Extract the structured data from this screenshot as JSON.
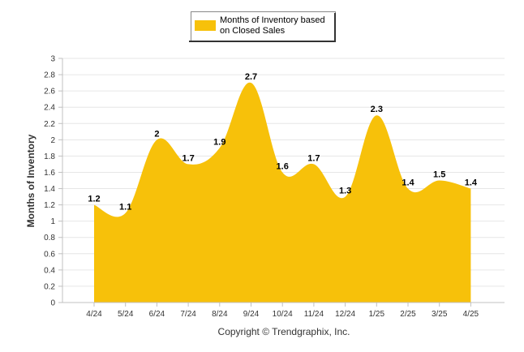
{
  "chart_data": {
    "type": "area",
    "categories": [
      "4/24",
      "5/24",
      "6/24",
      "7/24",
      "8/24",
      "9/24",
      "10/24",
      "11/24",
      "12/24",
      "1/25",
      "2/25",
      "3/25",
      "4/25"
    ],
    "series": [
      {
        "name": "Months of Inventory based on Closed Sales",
        "values": [
          1.2,
          1.1,
          2,
          1.7,
          1.9,
          2.7,
          1.6,
          1.7,
          1.3,
          2.3,
          1.4,
          1.5,
          1.4
        ],
        "value_labels": [
          "1.2",
          "1.1",
          "2",
          "1.7",
          "1.9",
          "2.7",
          "1.6",
          "1.7",
          "1.3",
          "2.3",
          "1.4",
          "1.5",
          "1.4"
        ],
        "color": "#F7C10A"
      }
    ],
    "ylabel": "Months of Inventory",
    "xlabel": "",
    "ylim": [
      0,
      3
    ],
    "yticks": [
      "0",
      "0.2",
      "0.4",
      "0.6",
      "0.8",
      "1",
      "1.2",
      "1.4",
      "1.6",
      "1.8",
      "2",
      "2.2",
      "2.4",
      "2.6",
      "2.8",
      "3"
    ],
    "grid": true,
    "legend_position": "top-center"
  },
  "legend": {
    "line1": "Months of Inventory based",
    "line2": "on Closed Sales"
  },
  "footer": "Copyright © Trendgraphix, Inc.",
  "colors": {
    "area": "#F7C10A",
    "grid": "#E6E6E6",
    "axis": "#C0C0C0"
  }
}
